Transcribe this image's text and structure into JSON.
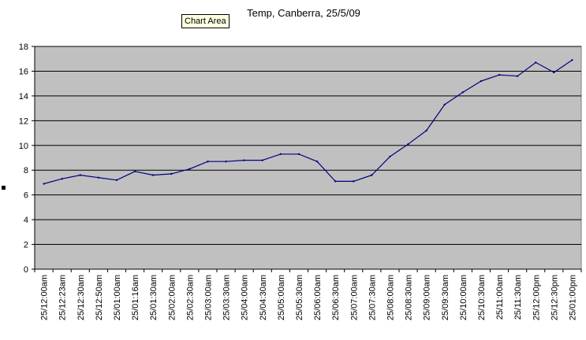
{
  "tooltip": "Chart Area",
  "chart_data": {
    "type": "line",
    "title": "Temp, Canberra, 25/5/09",
    "xlabel": "",
    "ylabel": "",
    "ylim": [
      0,
      18
    ],
    "yticks": [
      0,
      2,
      4,
      6,
      8,
      10,
      12,
      14,
      16,
      18
    ],
    "grid": true,
    "legend": "none",
    "colors": {
      "plot_area": "#c0c0c0",
      "line": "#000080",
      "gridline": "#000000"
    },
    "categories": [
      "25/12:00am",
      "25/12:23am",
      "25/12:30am",
      "25/12:50am",
      "25/01:00am",
      "25/01:16am",
      "25/01:30am",
      "25/02:00am",
      "25/02:30am",
      "25/03:00am",
      "25/03:30am",
      "25/04:00am",
      "25/04:30am",
      "25/05:00am",
      "25/05:30am",
      "25/06:00am",
      "25/06:30am",
      "25/07:00am",
      "25/07:30am",
      "25/08:00am",
      "25/08:30am",
      "25/09:00am",
      "25/09:30am",
      "25/10:00am",
      "25/10:30am",
      "25/11:00am",
      "25/11:30am",
      "25/12:00pm",
      "25/12:30pm",
      "25/01:00pm"
    ],
    "series": [
      {
        "values": [
          6.9,
          7.3,
          7.6,
          7.4,
          7.2,
          7.9,
          7.6,
          7.7,
          8.1,
          8.7,
          8.7,
          8.8,
          8.8,
          9.3,
          9.3,
          8.7,
          7.1,
          7.1,
          7.6,
          9.1,
          10.1,
          11.2,
          13.3,
          14.3,
          15.2,
          15.7,
          15.6,
          16.7,
          15.9,
          16.9
        ]
      }
    ]
  }
}
